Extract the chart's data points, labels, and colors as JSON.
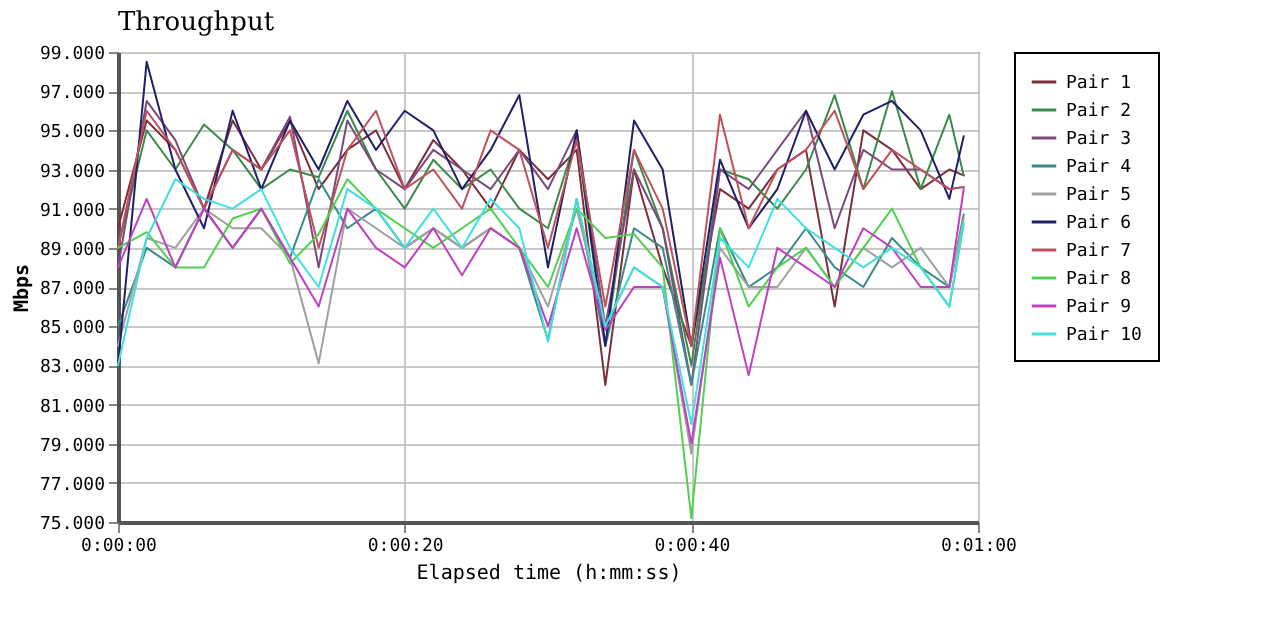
{
  "chart_data": {
    "type": "line",
    "title": "Throughput",
    "xlabel": "Elapsed time (h:mm:ss)",
    "ylabel": "Mbps",
    "x": [
      0,
      2,
      4,
      6,
      8,
      10,
      12,
      14,
      16,
      18,
      20,
      22,
      24,
      26,
      28,
      30,
      32,
      34,
      36,
      38,
      40,
      42,
      44,
      46,
      48,
      50,
      52,
      54,
      56,
      58,
      59
    ],
    "xlim": [
      0,
      60
    ],
    "xticks": [
      {
        "value": 0,
        "label": "0:00:00"
      },
      {
        "value": 20,
        "label": "0:00:20"
      },
      {
        "value": 40,
        "label": "0:00:40"
      },
      {
        "value": 60,
        "label": "0:01:00"
      }
    ],
    "ylim": [
      75,
      99
    ],
    "yticks": [
      {
        "value": 75,
        "label": "75.000"
      },
      {
        "value": 77,
        "label": "77.000"
      },
      {
        "value": 79,
        "label": "79.000"
      },
      {
        "value": 81,
        "label": "81.000"
      },
      {
        "value": 83,
        "label": "83.000"
      },
      {
        "value": 85,
        "label": "85.000"
      },
      {
        "value": 87,
        "label": "87.000"
      },
      {
        "value": 89,
        "label": "89.000"
      },
      {
        "value": 91,
        "label": "91.000"
      },
      {
        "value": 93,
        "label": "93.000"
      },
      {
        "value": 95,
        "label": "95.000"
      },
      {
        "value": 97,
        "label": "97.000"
      },
      {
        "value": 99,
        "label": "99.000"
      }
    ],
    "grid": true,
    "legend": "right",
    "marker": "none",
    "line_style": "solid",
    "series": [
      {
        "name": "Pair 1",
        "color": "#7b2f3a",
        "values": [
          90,
          95.5,
          94,
          91,
          95.5,
          93,
          95.5,
          92,
          94,
          95,
          92,
          94.5,
          93,
          91,
          94,
          92.5,
          94,
          82,
          93,
          88,
          84,
          92,
          91,
          93,
          94,
          86,
          95,
          94,
          92,
          93,
          92.7
        ]
      },
      {
        "name": "Pair 2",
        "color": "#3c8a4a",
        "values": [
          89,
          95,
          93,
          95.3,
          94,
          92,
          93,
          92.6,
          96,
          93,
          91,
          93.5,
          92,
          93,
          91,
          90,
          94.7,
          84,
          94,
          90,
          83,
          93,
          92.5,
          91,
          93,
          96.8,
          92,
          97,
          92,
          95.8,
          92.7
        ]
      },
      {
        "name": "Pair 3",
        "color": "#7a4a7a",
        "values": [
          88,
          96.5,
          94.5,
          91,
          94,
          93,
          95.7,
          88,
          95.5,
          93,
          92,
          94,
          93,
          92,
          94,
          92,
          95,
          85,
          93,
          90,
          82,
          93,
          92,
          94,
          96,
          90,
          94,
          93,
          93,
          92,
          92.1
        ]
      },
      {
        "name": "Pair 4",
        "color": "#3a8a8a",
        "values": [
          85,
          89,
          88,
          91,
          89,
          91,
          88.5,
          92.5,
          90,
          91,
          89,
          90,
          89,
          90,
          89,
          84.3,
          91.5,
          84,
          90,
          89,
          82,
          90,
          87,
          88,
          90,
          88,
          87,
          89.5,
          88,
          87,
          90.7
        ]
      },
      {
        "name": "Pair 5",
        "color": "#a0a0a0",
        "values": [
          84,
          89.5,
          89,
          91,
          90,
          90,
          88.5,
          83.1,
          91,
          90,
          89,
          90,
          89,
          90,
          89,
          86,
          91,
          85,
          88,
          87,
          78.5,
          89,
          87,
          87,
          89,
          87,
          89,
          88,
          89,
          87,
          90.5
        ]
      },
      {
        "name": "Pair 6",
        "color": "#20206a",
        "values": [
          83,
          98.5,
          93,
          90,
          96,
          92,
          95.5,
          93,
          96.5,
          94,
          96,
          95,
          92,
          94,
          96.8,
          88,
          95,
          84,
          95.5,
          93,
          84,
          93.5,
          90,
          92,
          96,
          93,
          95.8,
          96.5,
          95,
          91.5,
          94.7
        ]
      },
      {
        "name": "Pair 7",
        "color": "#c0505a",
        "values": [
          89,
          96,
          94,
          91,
          94,
          93,
          95,
          89,
          94,
          96,
          92,
          93,
          91,
          95,
          94,
          89,
          94.5,
          86,
          94,
          91,
          84,
          95.8,
          90,
          93,
          94,
          96,
          92,
          94,
          93,
          92,
          92.1
        ]
      },
      {
        "name": "Pair 8",
        "color": "#50d050",
        "values": [
          89,
          89.8,
          88,
          88,
          90.5,
          91,
          88.2,
          89.7,
          92.5,
          91,
          90,
          89,
          90,
          91,
          89,
          87,
          91,
          89.5,
          89.7,
          88,
          75.2,
          90,
          86,
          88,
          89,
          87,
          89,
          91,
          88,
          86,
          90.2
        ]
      },
      {
        "name": "Pair 9",
        "color": "#c040c0",
        "values": [
          88,
          91.5,
          88,
          91,
          89,
          91,
          88.5,
          86,
          91,
          89,
          88,
          90,
          87.6,
          90,
          89,
          85,
          90,
          84.8,
          87,
          87,
          79,
          88.5,
          82.5,
          89,
          88,
          87,
          90,
          89,
          87,
          87,
          92
        ]
      },
      {
        "name": "Pair 10",
        "color": "#40e0e0",
        "values": [
          83,
          89.5,
          92.5,
          91.5,
          91,
          92,
          89,
          87,
          92,
          91,
          89,
          91,
          89,
          91.5,
          90,
          84.2,
          91.5,
          85,
          88,
          87,
          80,
          89.5,
          88,
          91.5,
          90,
          89,
          88,
          89,
          88,
          86,
          90.3
        ]
      }
    ]
  }
}
